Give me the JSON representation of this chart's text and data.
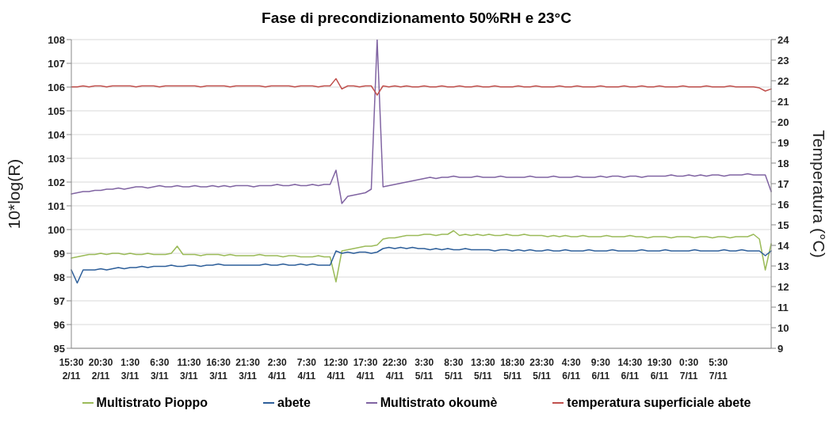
{
  "chart_data": {
    "type": "line",
    "title": "Fase di precondizionamento 50%RH e 23°C",
    "ylabel": "10*log(R)",
    "y2label": "Temperatura  (°C)",
    "categories": [
      "15:30 2/11",
      null,
      null,
      null,
      null,
      "20:30 2/11",
      null,
      null,
      null,
      null,
      "1:30 3/11",
      null,
      null,
      null,
      null,
      "6:30 3/11",
      null,
      null,
      null,
      null,
      "11:30 3/11",
      null,
      null,
      null,
      null,
      "16:30 3/11",
      null,
      null,
      null,
      null,
      "21:30 3/11",
      null,
      null,
      null,
      null,
      "2:30 4/11",
      null,
      null,
      null,
      null,
      "7:30 4/11",
      null,
      null,
      null,
      null,
      "12:30 4/11",
      null,
      null,
      null,
      null,
      "17:30 4/11",
      null,
      null,
      null,
      null,
      "22:30 4/11",
      null,
      null,
      null,
      null,
      "3:30 5/11",
      null,
      null,
      null,
      null,
      "8:30 5/11",
      null,
      null,
      null,
      null,
      "13:30 5/11",
      null,
      null,
      null,
      null,
      "18:30 5/11",
      null,
      null,
      null,
      null,
      "23:30 5/11",
      null,
      null,
      null,
      null,
      "4:30 6/11",
      null,
      null,
      null,
      null,
      "9:30 6/11",
      null,
      null,
      null,
      null,
      "14:30 6/11",
      null,
      null,
      null,
      null,
      "19:30 6/11",
      null,
      null,
      null,
      null,
      "0:30 7/11",
      null,
      null,
      null,
      null,
      "5:30 7/11",
      null,
      null,
      null,
      null,
      null,
      null,
      null,
      null,
      null
    ],
    "ylim": [
      95,
      108
    ],
    "yticks": [
      95,
      96,
      97,
      98,
      99,
      100,
      101,
      102,
      103,
      104,
      105,
      106,
      107,
      108
    ],
    "y2lim": [
      9,
      24
    ],
    "y2ticks": [
      9,
      10,
      11,
      12,
      13,
      14,
      15,
      16,
      17,
      18,
      19,
      20,
      21,
      22,
      23,
      24
    ],
    "grid": "y",
    "legend": "bottom",
    "marker": "none",
    "line_style": "solid",
    "series": [
      {
        "name": "Multistrato Pioppo",
        "color": "#9bbb59",
        "values": [
          98.8,
          98.85,
          98.9,
          98.95,
          98.95,
          99.0,
          98.95,
          99.0,
          99.0,
          98.95,
          99.0,
          98.95,
          98.95,
          99.0,
          98.95,
          98.95,
          98.95,
          99.0,
          99.3,
          98.95,
          98.95,
          98.95,
          98.9,
          98.95,
          98.95,
          98.95,
          98.9,
          98.95,
          98.9,
          98.9,
          98.9,
          98.9,
          98.95,
          98.9,
          98.9,
          98.9,
          98.85,
          98.9,
          98.9,
          98.85,
          98.85,
          98.85,
          98.9,
          98.85,
          98.85,
          97.8,
          99.1,
          99.15,
          99.2,
          99.25,
          99.3,
          99.3,
          99.35,
          99.6,
          99.65,
          99.65,
          99.7,
          99.75,
          99.75,
          99.75,
          99.8,
          99.8,
          99.75,
          99.8,
          99.8,
          99.95,
          99.75,
          99.8,
          99.75,
          99.8,
          99.75,
          99.8,
          99.75,
          99.75,
          99.8,
          99.75,
          99.75,
          99.8,
          99.75,
          99.75,
          99.75,
          99.7,
          99.75,
          99.7,
          99.75,
          99.7,
          99.7,
          99.75,
          99.7,
          99.7,
          99.7,
          99.75,
          99.7,
          99.7,
          99.7,
          99.75,
          99.7,
          99.7,
          99.65,
          99.7,
          99.7,
          99.7,
          99.65,
          99.7,
          99.7,
          99.7,
          99.65,
          99.7,
          99.7,
          99.65,
          99.7,
          99.7,
          99.65,
          99.7,
          99.7,
          99.7,
          99.8,
          99.6,
          98.3,
          99.4
        ]
      },
      {
        "name": "abete",
        "color": "#2e5f9a",
        "values": [
          98.3,
          97.75,
          98.3,
          98.3,
          98.3,
          98.35,
          98.3,
          98.35,
          98.4,
          98.35,
          98.4,
          98.4,
          98.45,
          98.4,
          98.45,
          98.45,
          98.45,
          98.5,
          98.45,
          98.45,
          98.5,
          98.5,
          98.45,
          98.5,
          98.5,
          98.55,
          98.5,
          98.5,
          98.5,
          98.5,
          98.5,
          98.5,
          98.5,
          98.55,
          98.5,
          98.5,
          98.55,
          98.5,
          98.5,
          98.55,
          98.5,
          98.55,
          98.5,
          98.5,
          98.5,
          99.1,
          99.0,
          99.05,
          99.0,
          99.05,
          99.05,
          99.0,
          99.05,
          99.2,
          99.25,
          99.2,
          99.25,
          99.2,
          99.25,
          99.2,
          99.2,
          99.15,
          99.2,
          99.15,
          99.2,
          99.15,
          99.15,
          99.2,
          99.15,
          99.15,
          99.15,
          99.15,
          99.1,
          99.15,
          99.15,
          99.1,
          99.15,
          99.1,
          99.15,
          99.1,
          99.1,
          99.15,
          99.1,
          99.1,
          99.15,
          99.1,
          99.1,
          99.1,
          99.15,
          99.1,
          99.1,
          99.1,
          99.15,
          99.1,
          99.1,
          99.1,
          99.1,
          99.15,
          99.1,
          99.1,
          99.1,
          99.15,
          99.1,
          99.1,
          99.1,
          99.1,
          99.15,
          99.1,
          99.1,
          99.1,
          99.1,
          99.15,
          99.1,
          99.1,
          99.15,
          99.1,
          99.1,
          99.1,
          98.9,
          99.1
        ]
      },
      {
        "name": "Multistrato okoumè",
        "color": "#8064a2",
        "values": [
          101.5,
          101.55,
          101.6,
          101.6,
          101.65,
          101.65,
          101.7,
          101.7,
          101.75,
          101.7,
          101.75,
          101.8,
          101.8,
          101.75,
          101.8,
          101.85,
          101.8,
          101.8,
          101.85,
          101.8,
          101.8,
          101.85,
          101.8,
          101.8,
          101.85,
          101.8,
          101.85,
          101.8,
          101.85,
          101.85,
          101.85,
          101.8,
          101.85,
          101.85,
          101.85,
          101.9,
          101.85,
          101.85,
          101.9,
          101.85,
          101.85,
          101.9,
          101.85,
          101.9,
          101.9,
          102.5,
          101.1,
          101.4,
          101.45,
          101.5,
          101.55,
          101.7,
          108,
          101.8,
          101.85,
          101.9,
          101.95,
          102.0,
          102.05,
          102.1,
          102.15,
          102.2,
          102.15,
          102.2,
          102.2,
          102.25,
          102.2,
          102.2,
          102.2,
          102.25,
          102.2,
          102.2,
          102.2,
          102.25,
          102.2,
          102.2,
          102.2,
          102.2,
          102.25,
          102.2,
          102.2,
          102.2,
          102.25,
          102.2,
          102.2,
          102.2,
          102.25,
          102.2,
          102.2,
          102.2,
          102.25,
          102.2,
          102.25,
          102.25,
          102.2,
          102.25,
          102.25,
          102.2,
          102.25,
          102.25,
          102.25,
          102.25,
          102.3,
          102.25,
          102.25,
          102.3,
          102.25,
          102.3,
          102.25,
          102.3,
          102.3,
          102.25,
          102.3,
          102.3,
          102.3,
          102.35,
          102.3,
          102.3,
          102.3,
          101.6
        ]
      },
      {
        "name": "temperatura superficiale abete",
        "color": "#c0504d",
        "axis": "y2",
        "values": [
          21.7,
          21.7,
          21.75,
          21.7,
          21.75,
          21.75,
          21.7,
          21.75,
          21.75,
          21.75,
          21.75,
          21.7,
          21.75,
          21.75,
          21.75,
          21.7,
          21.75,
          21.75,
          21.75,
          21.75,
          21.75,
          21.75,
          21.7,
          21.75,
          21.75,
          21.75,
          21.75,
          21.7,
          21.75,
          21.75,
          21.75,
          21.75,
          21.75,
          21.7,
          21.75,
          21.75,
          21.75,
          21.75,
          21.7,
          21.75,
          21.75,
          21.75,
          21.7,
          21.75,
          21.75,
          22.1,
          21.6,
          21.75,
          21.75,
          21.7,
          21.75,
          21.75,
          21.3,
          21.75,
          21.7,
          21.75,
          21.7,
          21.75,
          21.7,
          21.7,
          21.75,
          21.7,
          21.7,
          21.75,
          21.7,
          21.7,
          21.75,
          21.7,
          21.7,
          21.75,
          21.7,
          21.7,
          21.75,
          21.7,
          21.7,
          21.7,
          21.75,
          21.7,
          21.7,
          21.75,
          21.7,
          21.7,
          21.7,
          21.75,
          21.7,
          21.7,
          21.75,
          21.7,
          21.7,
          21.7,
          21.75,
          21.7,
          21.7,
          21.7,
          21.75,
          21.7,
          21.7,
          21.75,
          21.7,
          21.7,
          21.75,
          21.7,
          21.7,
          21.7,
          21.75,
          21.7,
          21.7,
          21.7,
          21.75,
          21.7,
          21.7,
          21.7,
          21.75,
          21.7,
          21.7,
          21.7,
          21.7,
          21.65,
          21.5,
          21.6
        ]
      }
    ]
  }
}
